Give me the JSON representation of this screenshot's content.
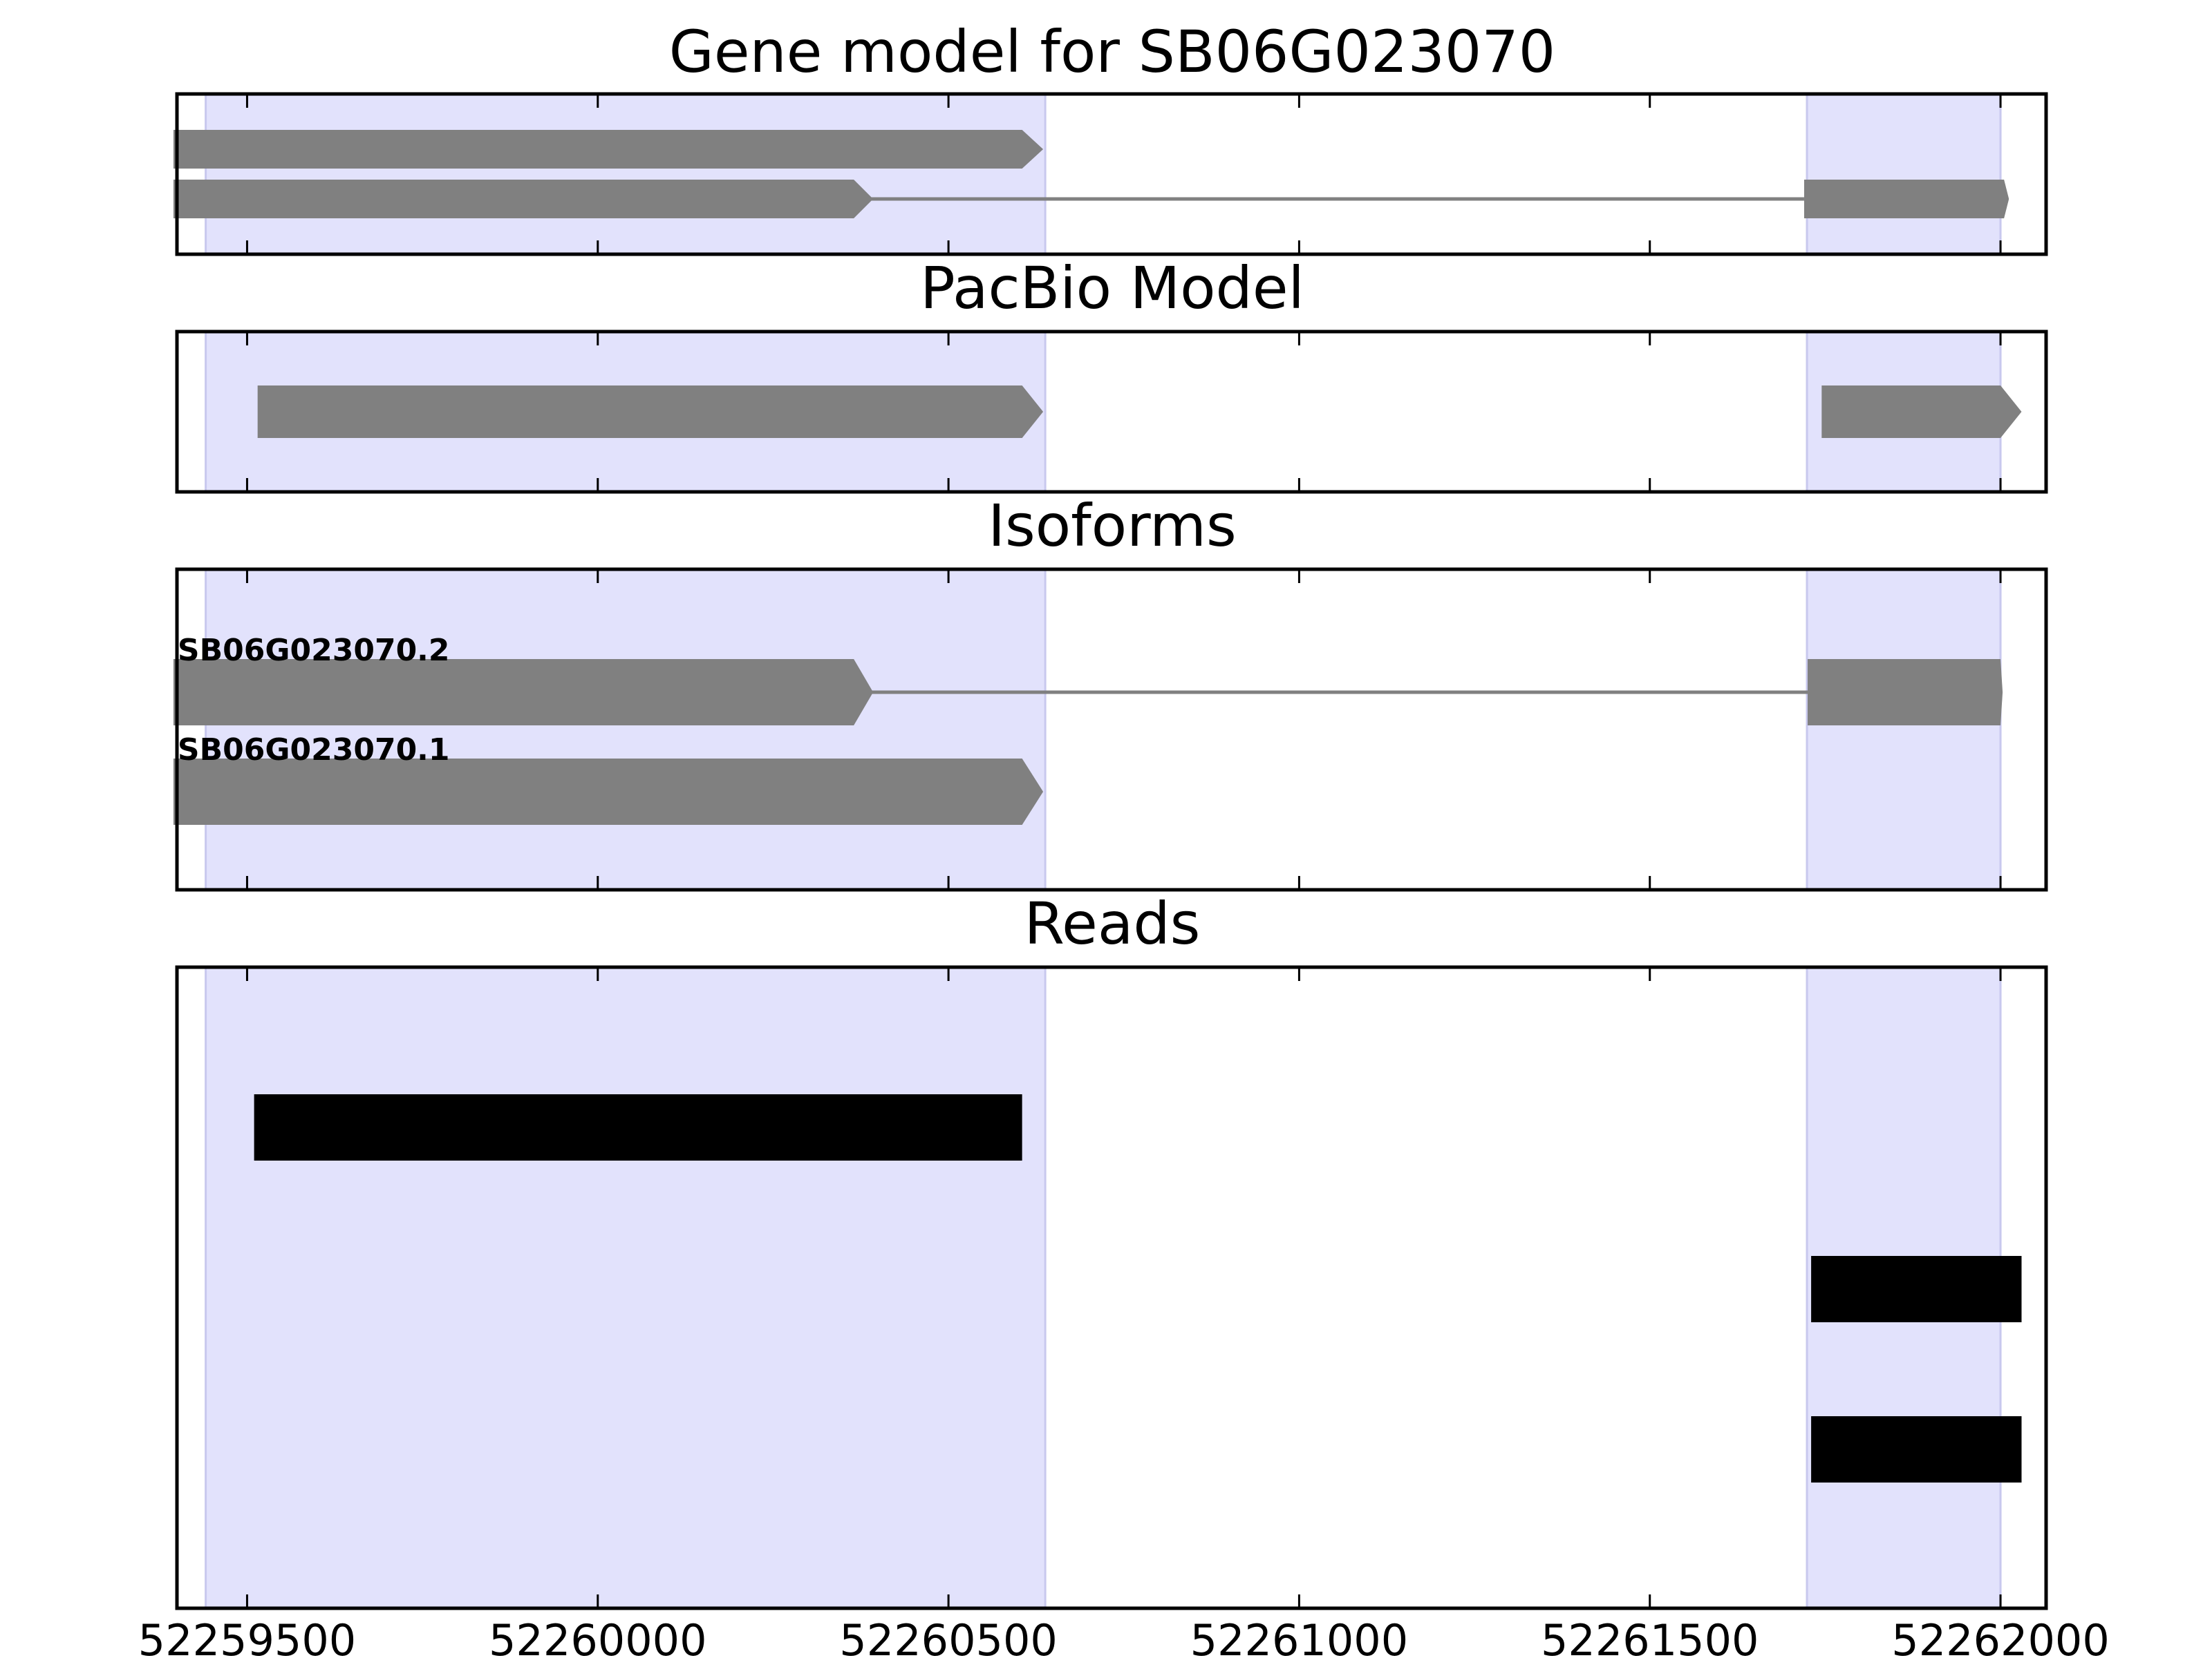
{
  "figure": {
    "axis": {
      "xlim": [
        52259400,
        52262065
      ],
      "ticks": [
        52259500,
        52260000,
        52260500,
        52261000,
        52261500,
        52262000
      ],
      "tick_labels": [
        "52259500",
        "52260000",
        "52260500",
        "52261000",
        "52261500",
        "52262000"
      ]
    },
    "colors": {
      "exon_region": "#e2e2fc",
      "gene_feature": "#808080",
      "read": "#000000",
      "frame": "#000000"
    },
    "exon_regions": [
      [
        52259441,
        52260638
      ],
      [
        52261724,
        52262000
      ]
    ],
    "panels": [
      {
        "title": "Gene model for SB06G023070",
        "rows": 2,
        "features": [
          {
            "row": 0,
            "segments": [
              [
                52259395,
                52260605
              ]
            ],
            "arrow_end": 52260635,
            "label": ""
          },
          {
            "row": 1,
            "segments": [
              [
                52259395,
                52260365
              ],
              [
                52261720,
                52262005
              ]
            ],
            "arrow_end": 52262012,
            "label": ""
          }
        ]
      },
      {
        "title": "PacBio Model",
        "rows": 1,
        "features": [
          {
            "row": 0,
            "segments": [
              [
                52259515,
                52260605
              ]
            ],
            "arrow_end": 52260635,
            "label": ""
          },
          {
            "row": 0,
            "segments": [
              [
                52261745,
                52262000
              ]
            ],
            "arrow_end": 52262030,
            "label": ""
          }
        ]
      },
      {
        "title": "Isoforms",
        "rows": 2,
        "features": [
          {
            "row": 0,
            "segments": [
              [
                52259395,
                52260365
              ],
              [
                52261725,
                52262000
              ]
            ],
            "arrow_end": 52262003,
            "label": "SB06G023070.2"
          },
          {
            "row": 1,
            "segments": [
              [
                52259395,
                52260605
              ]
            ],
            "arrow_end": 52260635,
            "label": "SB06G023070.1"
          }
        ]
      },
      {
        "title": "Reads",
        "rows": 3,
        "reads": [
          {
            "row": 0,
            "segments": [
              [
                52259510,
                52260605
              ]
            ]
          },
          {
            "row": 1,
            "segments": [
              [
                52261730,
                52262030
              ]
            ]
          },
          {
            "row": 2,
            "segments": [
              [
                52261730,
                52262030
              ]
            ]
          }
        ]
      }
    ]
  }
}
